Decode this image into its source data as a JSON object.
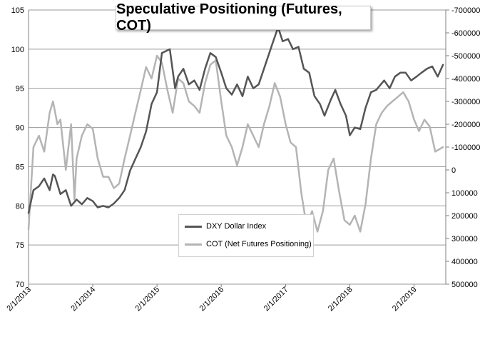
{
  "chart_data": {
    "type": "line",
    "title": "Speculative Positioning (Futures, COT)",
    "x_tick_labels": [
      "2/1/2013",
      "2/1/2014",
      "2/1/2015",
      "2/1/2016",
      "2/1/2017",
      "2/1/2018",
      "2/1/2019"
    ],
    "x_range": [
      "2013-02-01",
      "2019-07-15"
    ],
    "y_left": {
      "min": 70,
      "max": 105,
      "step": 5,
      "tick_labels": [
        "70",
        "75",
        "80",
        "85",
        "90",
        "95",
        "100",
        "105"
      ]
    },
    "y_right": {
      "min": -700000,
      "max": 500000,
      "inverted": true,
      "step": 100000,
      "tick_labels": [
        "-700000",
        "-600000",
        "-500000",
        "-400000",
        "-300000",
        "-200000",
        "-100000",
        "0",
        "100000",
        "200000",
        "300000",
        "400000",
        "500000"
      ]
    },
    "grid": "horizontal",
    "legend_position": "bottom-center",
    "colors": {
      "dxy": "#555555",
      "cot": "#b4b4b4",
      "grid": "#9a9a9a"
    },
    "series": [
      {
        "name": "DXY Dollar Index",
        "axis": "left",
        "points": [
          [
            "2013-02-01",
            79.1
          ],
          [
            "2013-03-01",
            82.0
          ],
          [
            "2013-04-01",
            82.5
          ],
          [
            "2013-05-01",
            83.5
          ],
          [
            "2013-06-01",
            82.0
          ],
          [
            "2013-06-20",
            84.0
          ],
          [
            "2013-07-01",
            83.8
          ],
          [
            "2013-08-01",
            81.5
          ],
          [
            "2013-09-01",
            82.0
          ],
          [
            "2013-10-01",
            80.0
          ],
          [
            "2013-11-01",
            80.8
          ],
          [
            "2013-12-01",
            80.2
          ],
          [
            "2014-01-01",
            81.0
          ],
          [
            "2014-02-01",
            80.6
          ],
          [
            "2014-03-01",
            79.8
          ],
          [
            "2014-04-01",
            80.0
          ],
          [
            "2014-05-01",
            79.8
          ],
          [
            "2014-06-01",
            80.3
          ],
          [
            "2014-07-01",
            81.0
          ],
          [
            "2014-08-01",
            82.0
          ],
          [
            "2014-09-01",
            84.5
          ],
          [
            "2014-10-01",
            86.0
          ],
          [
            "2014-11-01",
            87.5
          ],
          [
            "2014-12-01",
            89.5
          ],
          [
            "2015-01-01",
            93.0
          ],
          [
            "2015-02-01",
            94.5
          ],
          [
            "2015-03-01",
            99.5
          ],
          [
            "2015-04-15",
            100.0
          ],
          [
            "2015-05-15",
            95.0
          ],
          [
            "2015-06-01",
            96.5
          ],
          [
            "2015-07-01",
            97.5
          ],
          [
            "2015-08-01",
            95.5
          ],
          [
            "2015-09-01",
            96.0
          ],
          [
            "2015-10-01",
            94.8
          ],
          [
            "2015-11-01",
            97.5
          ],
          [
            "2015-12-01",
            99.5
          ],
          [
            "2016-01-01",
            99.0
          ],
          [
            "2016-02-01",
            97.0
          ],
          [
            "2016-03-01",
            95.0
          ],
          [
            "2016-04-01",
            94.2
          ],
          [
            "2016-05-01",
            95.5
          ],
          [
            "2016-06-01",
            94.0
          ],
          [
            "2016-07-01",
            96.5
          ],
          [
            "2016-08-01",
            95.0
          ],
          [
            "2016-09-01",
            95.5
          ],
          [
            "2016-10-01",
            97.5
          ],
          [
            "2016-11-15",
            100.5
          ],
          [
            "2016-12-20",
            102.8
          ],
          [
            "2017-01-15",
            101.0
          ],
          [
            "2017-02-15",
            101.3
          ],
          [
            "2017-03-15",
            100.0
          ],
          [
            "2017-04-15",
            100.3
          ],
          [
            "2017-05-15",
            97.5
          ],
          [
            "2017-06-15",
            97.0
          ],
          [
            "2017-07-15",
            94.0
          ],
          [
            "2017-08-15",
            93.0
          ],
          [
            "2017-09-10",
            91.5
          ],
          [
            "2017-10-15",
            93.5
          ],
          [
            "2017-11-10",
            94.8
          ],
          [
            "2017-12-10",
            93.0
          ],
          [
            "2018-01-10",
            91.5
          ],
          [
            "2018-02-01",
            89.0
          ],
          [
            "2018-03-01",
            90.0
          ],
          [
            "2018-04-01",
            89.8
          ],
          [
            "2018-05-01",
            92.5
          ],
          [
            "2018-06-01",
            94.5
          ],
          [
            "2018-07-01",
            94.8
          ],
          [
            "2018-08-15",
            96.0
          ],
          [
            "2018-09-15",
            95.0
          ],
          [
            "2018-10-15",
            96.5
          ],
          [
            "2018-11-15",
            97.0
          ],
          [
            "2018-12-15",
            97.0
          ],
          [
            "2019-01-15",
            96.0
          ],
          [
            "2019-02-15",
            96.5
          ],
          [
            "2019-03-15",
            97.0
          ],
          [
            "2019-04-15",
            97.5
          ],
          [
            "2019-05-15",
            97.8
          ],
          [
            "2019-06-15",
            96.5
          ],
          [
            "2019-07-15",
            98.0
          ]
        ]
      },
      {
        "name": "COT (Net Futures Positioning)",
        "axis": "right",
        "points": [
          [
            "2013-02-01",
            260000
          ],
          [
            "2013-03-01",
            -100000
          ],
          [
            "2013-04-01",
            -150000
          ],
          [
            "2013-05-01",
            -80000
          ],
          [
            "2013-06-01",
            -250000
          ],
          [
            "2013-06-20",
            -300000
          ],
          [
            "2013-07-15",
            -200000
          ],
          [
            "2013-08-01",
            -220000
          ],
          [
            "2013-09-01",
            0
          ],
          [
            "2013-10-01",
            -200000
          ],
          [
            "2013-10-20",
            130000
          ],
          [
            "2013-11-01",
            -50000
          ],
          [
            "2013-12-01",
            -150000
          ],
          [
            "2014-01-01",
            -200000
          ],
          [
            "2014-02-01",
            -180000
          ],
          [
            "2014-03-01",
            -50000
          ],
          [
            "2014-04-01",
            30000
          ],
          [
            "2014-05-01",
            30000
          ],
          [
            "2014-06-01",
            80000
          ],
          [
            "2014-07-01",
            60000
          ],
          [
            "2014-08-01",
            -50000
          ],
          [
            "2014-09-01",
            -150000
          ],
          [
            "2014-10-01",
            -250000
          ],
          [
            "2014-11-01",
            -350000
          ],
          [
            "2014-12-01",
            -450000
          ],
          [
            "2015-01-01",
            -400000
          ],
          [
            "2015-02-01",
            -500000
          ],
          [
            "2015-03-01",
            -470000
          ],
          [
            "2015-04-01",
            -350000
          ],
          [
            "2015-05-01",
            -250000
          ],
          [
            "2015-06-01",
            -400000
          ],
          [
            "2015-07-01",
            -380000
          ],
          [
            "2015-08-01",
            -300000
          ],
          [
            "2015-09-01",
            -280000
          ],
          [
            "2015-10-01",
            -250000
          ],
          [
            "2015-11-01",
            -380000
          ],
          [
            "2015-12-01",
            -460000
          ],
          [
            "2016-01-01",
            -480000
          ],
          [
            "2016-02-01",
            -300000
          ],
          [
            "2016-03-01",
            -150000
          ],
          [
            "2016-04-01",
            -100000
          ],
          [
            "2016-05-01",
            -20000
          ],
          [
            "2016-06-01",
            -100000
          ],
          [
            "2016-07-01",
            -200000
          ],
          [
            "2016-08-01",
            -150000
          ],
          [
            "2016-09-01",
            -100000
          ],
          [
            "2016-10-01",
            -200000
          ],
          [
            "2016-11-01",
            -280000
          ],
          [
            "2016-12-01",
            -380000
          ],
          [
            "2017-01-01",
            -320000
          ],
          [
            "2017-02-01",
            -200000
          ],
          [
            "2017-03-01",
            -120000
          ],
          [
            "2017-04-01",
            -100000
          ],
          [
            "2017-05-01",
            100000
          ],
          [
            "2017-06-01",
            250000
          ],
          [
            "2017-07-01",
            180000
          ],
          [
            "2017-08-01",
            270000
          ],
          [
            "2017-09-01",
            180000
          ],
          [
            "2017-10-01",
            0
          ],
          [
            "2017-11-01",
            -50000
          ],
          [
            "2017-12-01",
            90000
          ],
          [
            "2018-01-01",
            220000
          ],
          [
            "2018-02-01",
            240000
          ],
          [
            "2018-03-01",
            200000
          ],
          [
            "2018-04-01",
            270000
          ],
          [
            "2018-05-01",
            150000
          ],
          [
            "2018-06-01",
            -50000
          ],
          [
            "2018-07-01",
            -200000
          ],
          [
            "2018-08-01",
            -250000
          ],
          [
            "2018-09-01",
            -280000
          ],
          [
            "2018-10-01",
            -300000
          ],
          [
            "2018-11-01",
            -320000
          ],
          [
            "2018-12-01",
            -340000
          ],
          [
            "2019-01-01",
            -300000
          ],
          [
            "2019-02-01",
            -220000
          ],
          [
            "2019-03-01",
            -170000
          ],
          [
            "2019-04-01",
            -220000
          ],
          [
            "2019-05-01",
            -190000
          ],
          [
            "2019-06-01",
            -80000
          ],
          [
            "2019-07-15",
            -100000
          ]
        ]
      }
    ]
  }
}
